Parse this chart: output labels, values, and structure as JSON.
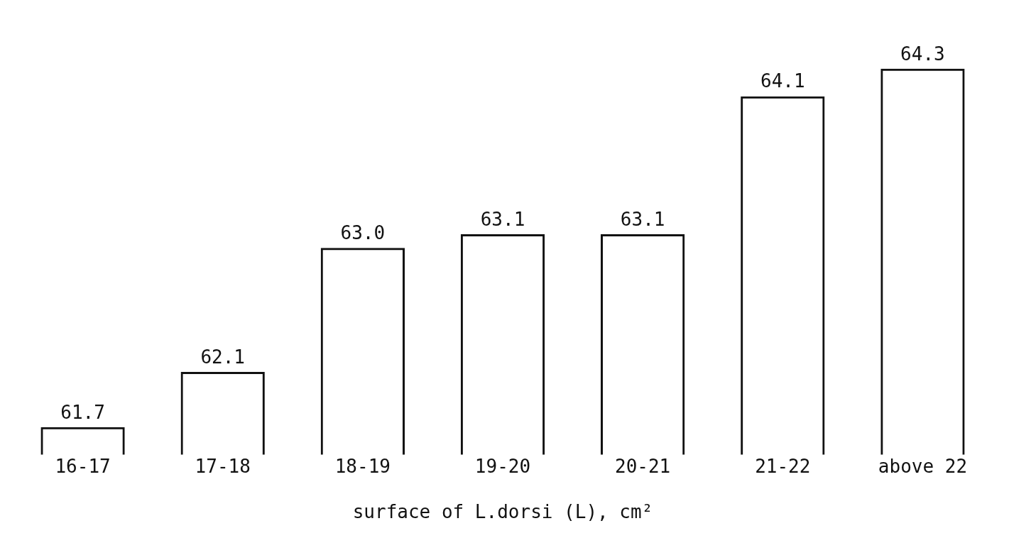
{
  "chart_data": {
    "type": "bar",
    "categories": [
      "16-17",
      "17-18",
      "18-19",
      "19-20",
      "20-21",
      "21-22",
      "above 22"
    ],
    "values": [
      61.7,
      62.1,
      63.0,
      63.1,
      63.1,
      64.1,
      64.3
    ],
    "color": "#111111",
    "value_labels": [
      "61.7",
      "62.1",
      "63.0",
      "63.1",
      "63.1",
      "64.1",
      "64.3"
    ],
    "xlabel": "surface of L.dorsi (L), cm²",
    "tick_labels": "x",
    "grid": false,
    "legend": false
  }
}
